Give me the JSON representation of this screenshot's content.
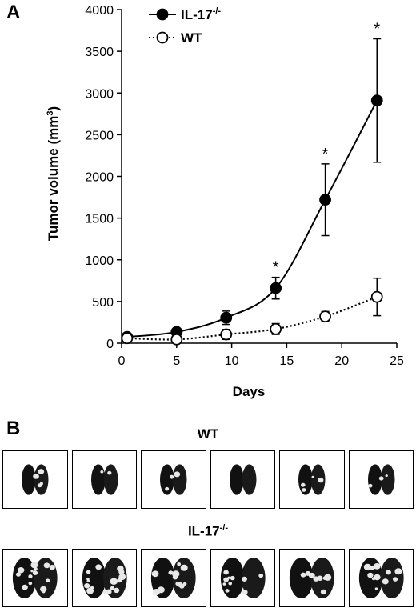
{
  "panels": {
    "a_letter": "A",
    "b_letter": "B"
  },
  "chart_data": {
    "type": "line",
    "xlabel": "Days",
    "ylabel": "Tumor volume (mm",
    "ylabel_sup": "3",
    "ylabel_end": ")",
    "xlim": [
      0,
      25
    ],
    "ylim": [
      0,
      4000
    ],
    "x_ticks": [
      0,
      5,
      10,
      15,
      20,
      25
    ],
    "y_ticks": [
      0,
      500,
      1000,
      1500,
      2000,
      2500,
      3000,
      3500,
      4000
    ],
    "grid": false,
    "legend_position": "top-left",
    "series": [
      {
        "name": "IL-17",
        "name_sup": "-/-",
        "marker": "filled-circle",
        "line_style": "solid",
        "x": [
          0.5,
          5,
          9.5,
          14,
          18.5,
          23.2
        ],
        "y": [
          75,
          135,
          305,
          660,
          1720,
          2910
        ],
        "error": [
          10,
          30,
          80,
          130,
          430,
          740
        ],
        "significant": [
          false,
          false,
          false,
          true,
          true,
          true
        ]
      },
      {
        "name": "WT",
        "marker": "open-circle",
        "line_style": "dotted",
        "x": [
          0.5,
          5,
          9.5,
          14,
          18.5,
          23.2
        ],
        "y": [
          60,
          45,
          105,
          170,
          320,
          555
        ],
        "error": [
          10,
          30,
          60,
          65,
          60,
          225
        ],
        "significant": [
          false,
          false,
          false,
          false,
          false,
          false
        ]
      }
    ],
    "significance_mark": "*"
  },
  "panel_b": {
    "wt_label": "WT",
    "il17_label": "IL-17",
    "il17_sup": "-/-",
    "wt_photos": [
      {
        "nodules": 4
      },
      {
        "nodules": 2
      },
      {
        "nodules": 3
      },
      {
        "nodules": 0
      },
      {
        "nodules": 4
      },
      {
        "nodules": 3
      }
    ],
    "il17_photos": [
      {
        "nodules": 14
      },
      {
        "nodules": 16
      },
      {
        "nodules": 12
      },
      {
        "nodules": 10
      },
      {
        "nodules": 8
      },
      {
        "nodules": 11
      }
    ]
  }
}
